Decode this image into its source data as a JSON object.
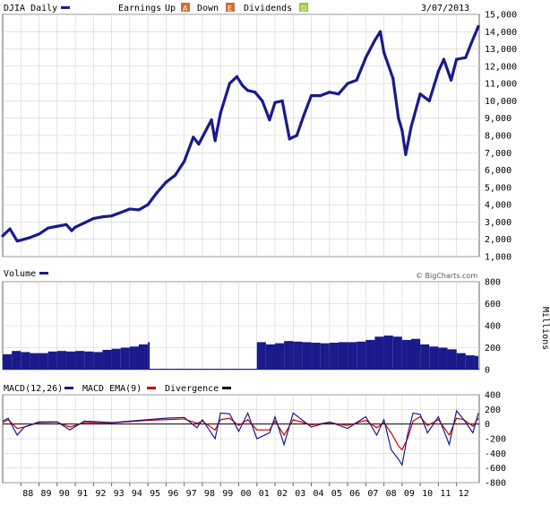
{
  "chart_data": [
    {
      "type": "line",
      "panel": "price",
      "title": "DJIA Daily",
      "legend": {
        "earnings": "Earnings",
        "up": "Up",
        "down": "Down",
        "dividends": "Dividends",
        "up_icon": "A",
        "down_icon": "E",
        "div_icon": "D"
      },
      "date": "3/07/2013",
      "ylim": [
        1000,
        15000
      ],
      "yticks": [
        "15,000",
        "14,000",
        "13,000",
        "12,000",
        "11,000",
        "10,000",
        "9,000",
        "8,000",
        "7,000",
        "6,000",
        "5,000",
        "4,000",
        "3,000",
        "2,000",
        "1,000"
      ],
      "ytick_values": [
        15000,
        14000,
        13000,
        12000,
        11000,
        10000,
        9000,
        8000,
        7000,
        6000,
        5000,
        4000,
        3000,
        2000,
        1000
      ],
      "x": [
        1987.0,
        1987.4,
        1987.8,
        1988.0,
        1988.5,
        1989.0,
        1989.5,
        1990.0,
        1990.5,
        1990.8,
        1991.0,
        1991.5,
        1992.0,
        1992.5,
        1993.0,
        1993.5,
        1994.0,
        1994.5,
        1995.0,
        1995.5,
        1996.0,
        1996.5,
        1997.0,
        1997.5,
        1997.8,
        1998.0,
        1998.5,
        1998.7,
        1999.0,
        1999.5,
        1999.9,
        2000.2,
        2000.5,
        2000.9,
        2001.3,
        2001.7,
        2002.0,
        2002.4,
        2002.8,
        2003.2,
        2003.6,
        2004.0,
        2004.5,
        2005.0,
        2005.5,
        2006.0,
        2006.5,
        2007.0,
        2007.5,
        2007.8,
        2008.0,
        2008.5,
        2008.8,
        2009.0,
        2009.2,
        2009.5,
        2010.0,
        2010.5,
        2011.0,
        2011.3,
        2011.7,
        2012.0,
        2012.5,
        2012.8,
        2013.0,
        2013.2
      ],
      "values": [
        2200,
        2600,
        1900,
        1950,
        2100,
        2300,
        2650,
        2750,
        2850,
        2500,
        2700,
        2950,
        3200,
        3300,
        3350,
        3550,
        3750,
        3700,
        4000,
        4700,
        5300,
        5700,
        6500,
        7900,
        7500,
        7900,
        8900,
        7700,
        9300,
        11000,
        11400,
        10900,
        10600,
        10500,
        10000,
        8900,
        9900,
        10000,
        7800,
        8000,
        9200,
        10300,
        10300,
        10500,
        10400,
        11000,
        11200,
        12500,
        13500,
        14000,
        12800,
        11300,
        9000,
        8300,
        6900,
        8500,
        10400,
        10000,
        11700,
        12400,
        11200,
        12400,
        12500,
        13300,
        13800,
        14300
      ],
      "series_name": "DJIA"
    },
    {
      "type": "bar",
      "panel": "volume",
      "title": "Volume",
      "unit_label": "Millions",
      "credit": "© BigCharts.com",
      "ylim": [
        0,
        800
      ],
      "yticks": [
        "800",
        "600",
        "400",
        "200",
        "0"
      ],
      "ytick_values": [
        800,
        600,
        400,
        200,
        0
      ],
      "x": [
        1987.0,
        1987.5,
        1988.0,
        1988.5,
        1989.0,
        1989.5,
        1990.0,
        1990.5,
        1991.0,
        1991.5,
        1992.0,
        1992.5,
        1993.0,
        1993.5,
        1994.0,
        1994.5,
        1995.0,
        1995.1,
        2000.5,
        2001.0,
        2001.5,
        2002.0,
        2002.5,
        2003.0,
        2003.5,
        2004.0,
        2004.5,
        2005.0,
        2005.5,
        2006.0,
        2006.5,
        2007.0,
        2007.5,
        2008.0,
        2008.5,
        2009.0,
        2009.5,
        2010.0,
        2010.5,
        2011.0,
        2011.5,
        2012.0,
        2012.5,
        2013.0,
        2013.2
      ],
      "values": [
        140,
        170,
        160,
        150,
        150,
        165,
        170,
        165,
        170,
        165,
        160,
        180,
        190,
        200,
        210,
        230,
        250,
        0,
        0,
        250,
        230,
        240,
        260,
        255,
        250,
        245,
        240,
        245,
        250,
        250,
        255,
        270,
        300,
        310,
        300,
        270,
        280,
        230,
        210,
        200,
        185,
        150,
        130,
        125,
        120
      ]
    },
    {
      "type": "line",
      "panel": "macd",
      "title": "MACD(12,26)",
      "legend": [
        "MACD EMA(9)",
        "Divergence"
      ],
      "ylim": [
        -800,
        400
      ],
      "yticks": [
        "400",
        "200",
        "0",
        "-200",
        "-400",
        "-600",
        "-800"
      ],
      "ytick_values": [
        400,
        200,
        0,
        -200,
        -400,
        -600,
        -800
      ],
      "x": [
        1987.0,
        1987.3,
        1987.8,
        1988.2,
        1989.0,
        1990.0,
        1990.7,
        1991.5,
        1993.0,
        1995.0,
        1996.0,
        1997.0,
        1997.7,
        1998.0,
        1998.7,
        1999.0,
        1999.5,
        2000.0,
        2000.5,
        2001.0,
        2001.7,
        2002.0,
        2002.5,
        2003.0,
        2004.0,
        2005.0,
        2006.0,
        2007.0,
        2007.6,
        2008.0,
        2008.4,
        2008.8,
        2009.0,
        2009.3,
        2009.6,
        2010.0,
        2010.4,
        2011.0,
        2011.6,
        2012.0,
        2012.4,
        2012.9,
        2013.2
      ],
      "values": [
        40,
        80,
        -150,
        -40,
        30,
        30,
        -80,
        40,
        20,
        60,
        80,
        90,
        -50,
        60,
        -200,
        150,
        140,
        -100,
        150,
        -200,
        -120,
        100,
        -280,
        150,
        -40,
        30,
        -60,
        100,
        -150,
        60,
        -350,
        -480,
        -560,
        -150,
        150,
        130,
        -120,
        100,
        -280,
        180,
        60,
        -120,
        150
      ],
      "signal": [
        20,
        60,
        -60,
        -40,
        20,
        25,
        -40,
        20,
        15,
        50,
        60,
        70,
        10,
        40,
        -80,
        60,
        80,
        -20,
        60,
        -80,
        -80,
        40,
        -150,
        60,
        -10,
        20,
        -20,
        50,
        -50,
        20,
        -120,
        -300,
        -350,
        -200,
        40,
        100,
        -20,
        60,
        -150,
        80,
        60,
        -30,
        80
      ],
      "divergence_color": "#000000"
    }
  ],
  "x_axis": {
    "labels": [
      "88",
      "89",
      "90",
      "91",
      "92",
      "93",
      "94",
      "95",
      "96",
      "97",
      "98",
      "99",
      "00",
      "01",
      "02",
      "03",
      "04",
      "05",
      "06",
      "07",
      "08",
      "09",
      "10",
      "11",
      "12"
    ],
    "years": [
      1988,
      1989,
      1990,
      1991,
      1992,
      1993,
      1994,
      1995,
      1996,
      1997,
      1998,
      1999,
      2000,
      2001,
      2002,
      2003,
      2004,
      2005,
      2006,
      2007,
      2008,
      2009,
      2010,
      2011,
      2012
    ],
    "range": [
      1987.0,
      2013.25
    ]
  },
  "colors": {
    "series": "#1a1a8c",
    "signal": "#cc0000",
    "grid": "#d0d0d0",
    "border": "#666666",
    "up_icon": "#d07030",
    "div_icon": "#99cc33"
  }
}
